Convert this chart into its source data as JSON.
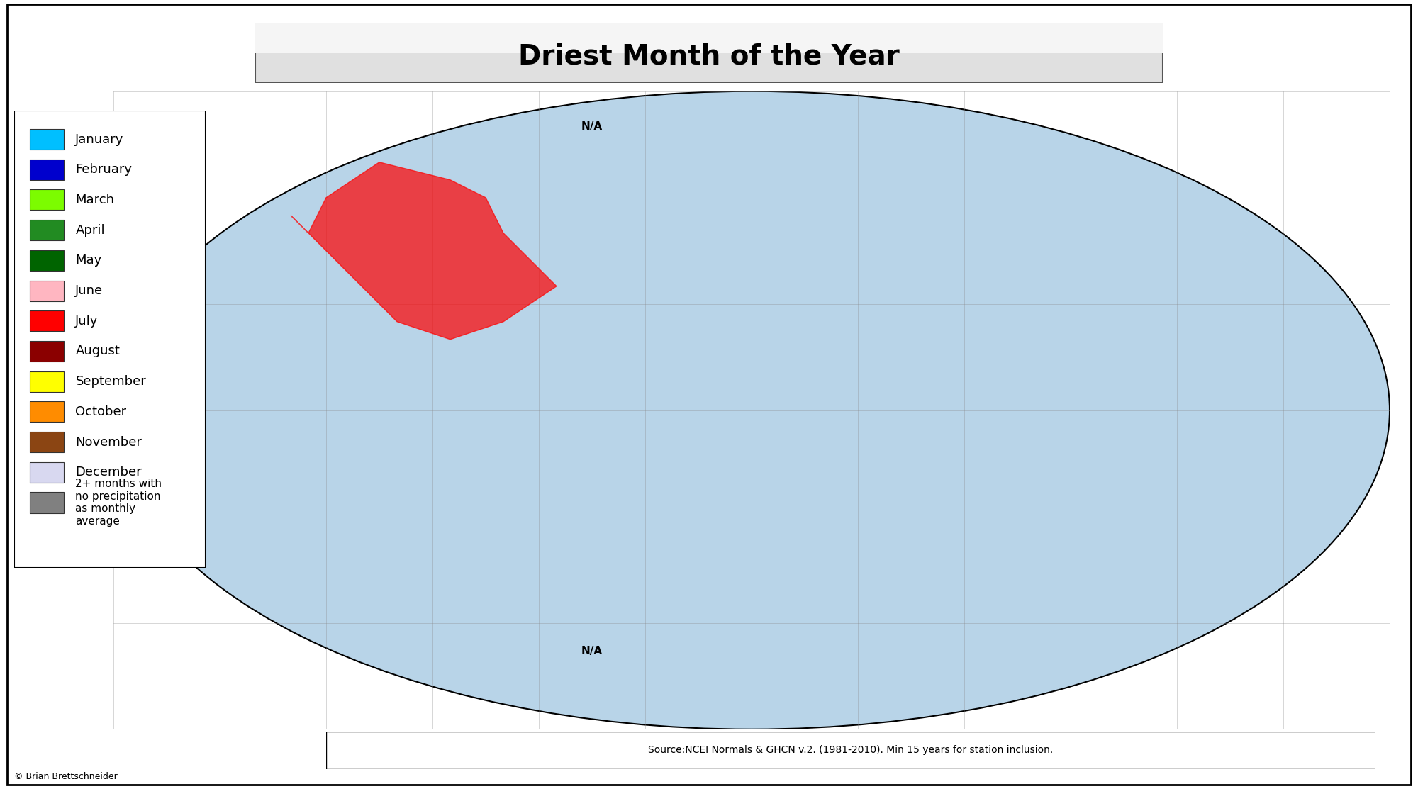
{
  "title": "Driest Month of the Year",
  "title_fontsize": 28,
  "title_fontweight": "bold",
  "background_color": "#ffffff",
  "ocean_color": "#b8d4e8",
  "map_bg_color": "#c8dded",
  "legend_items": [
    {
      "label": "January",
      "color": "#00bfff"
    },
    {
      "label": "February",
      "color": "#0000cd"
    },
    {
      "label": "March",
      "color": "#7cfc00"
    },
    {
      "label": "April",
      "color": "#228b22"
    },
    {
      "label": "May",
      "color": "#006400"
    },
    {
      "label": "June",
      "color": "#ffb6c1"
    },
    {
      "label": "July",
      "color": "#ff0000"
    },
    {
      "label": "August",
      "color": "#8b0000"
    },
    {
      "label": "September",
      "color": "#ffff00"
    },
    {
      "label": "October",
      "color": "#ff8c00"
    },
    {
      "label": "November",
      "color": "#8b4513"
    },
    {
      "label": "December",
      "color": "#d8d8f0"
    }
  ],
  "legend_extra": {
    "label": "2+ months with\nno precipitation\nas monthly\naverage",
    "color": "#808080"
  },
  "note_na1": "N/A",
  "note_na2": "N/A",
  "source_text": "Source:NCEI Normals & GHCN v.2. (1981-2010). Min 15 years for station inclusion.",
  "copyright_text": "© Brian Brettschneider",
  "source_fontsize": 10,
  "legend_fontsize": 13,
  "legend_title_fontsize": 11
}
